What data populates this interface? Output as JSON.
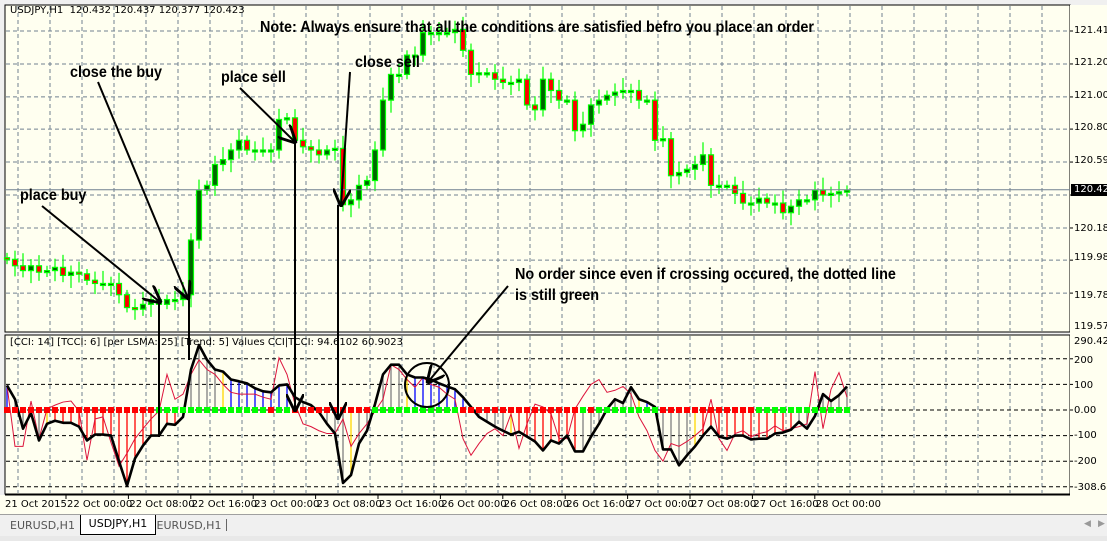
{
  "header": {
    "symbol_info": "USDJPY,H1  120.432 120.437 120.377 120.423"
  },
  "indicator": {
    "info": "[CCI: 14] [TCCI: 6] [per LSMA: 25] [Trend: 5] Values CCI|TCCI: 94.6102 60.9023"
  },
  "price_axis": {
    "ticks": [
      "121.410",
      "121.205",
      "121.000",
      "120.800",
      "120.595",
      "120.185",
      "119.985",
      "119.780",
      "119.575"
    ],
    "current_price": "120.423"
  },
  "indicator_axis": {
    "ticks": [
      "290.421",
      "200",
      "100",
      "0.00",
      "-100",
      "-200",
      "-308.617"
    ]
  },
  "time_axis": {
    "labels": [
      "21 Oct 2015",
      "22 Oct 00:00",
      "22 Oct 08:00",
      "22 Oct 16:00",
      "23 Oct 00:00",
      "23 Oct 08:00",
      "23 Oct 16:00",
      "26 Oct 00:00",
      "26 Oct 08:00",
      "26 Oct 16:00",
      "27 Oct 00:00",
      "27 Oct 08:00",
      "27 Oct 16:00",
      "28 Oct 00:00"
    ]
  },
  "annotations": {
    "note": "Note: Always ensure that all the conditions are satisfied befro you place an order",
    "close_buy": "close the buy",
    "place_sell": "place sell",
    "close_sell": "close sell",
    "place_buy": "place buy",
    "no_order_line1": "No order since even if crossing occured, the dotted line",
    "no_order_line2": "is still green"
  },
  "tabs": [
    {
      "label": "EURUSD,H1",
      "active": false
    },
    {
      "label": "USDJPY,H1",
      "active": true
    },
    {
      "label": "EURUSD,H1",
      "active": false
    }
  ],
  "colors": {
    "chart_bg": "#fffff0",
    "bull_body": "#006400",
    "bear_body": "#ff0000",
    "candle_outline": "#00ff00",
    "cci_line": "#000000",
    "tcci_line": "#dc143c",
    "hist_red": "#ff0000",
    "hist_gray": "#808080",
    "hist_blue": "#0000ff",
    "hist_yellow": "#ffd700",
    "dot_red": "#ff0000",
    "dot_green": "#00ff00"
  },
  "chart_data": {
    "type": "candlestick",
    "symbol": "USDJPY",
    "timeframe": "H1",
    "ylim": [
      119.575,
      121.41
    ],
    "closes": [
      119.99,
      119.95,
      119.92,
      119.95,
      119.91,
      119.92,
      119.94,
      119.89,
      119.91,
      119.9,
      119.86,
      119.84,
      119.84,
      119.84,
      119.77,
      119.69,
      119.68,
      119.71,
      119.74,
      119.71,
      119.74,
      119.74,
      119.77,
      120.11,
      120.42,
      120.45,
      120.58,
      120.61,
      120.67,
      120.73,
      120.67,
      120.67,
      120.67,
      120.67,
      120.86,
      120.87,
      120.73,
      120.69,
      120.67,
      120.64,
      120.67,
      120.68,
      120.33,
      120.36,
      120.45,
      120.48,
      120.67,
      120.98,
      121.14,
      121.14,
      121.26,
      121.26,
      121.4,
      121.4,
      121.4,
      121.4,
      121.42,
      121.29,
      121.14,
      121.15,
      121.15,
      121.11,
      121.09,
      121.09,
      121.11,
      120.95,
      120.92,
      121.11,
      121.04,
      120.98,
      120.98,
      120.79,
      120.83,
      120.95,
      120.98,
      121.01,
      121.03,
      121.04,
      121.04,
      120.98,
      120.98,
      120.73,
      120.74,
      120.51,
      120.53,
      120.55,
      120.58,
      120.64,
      120.45,
      120.45,
      120.45,
      120.4,
      120.34,
      120.34,
      120.37,
      120.34,
      120.34,
      120.28,
      120.32,
      120.36,
      120.36,
      120.42,
      120.39,
      120.4,
      120.41,
      120.42
    ],
    "indicator": {
      "ylim": [
        -308.617,
        290.421
      ],
      "cci": [
        96,
        42,
        -73,
        -12,
        -119,
        -54,
        -42,
        -50,
        -50,
        -65,
        -119,
        -96,
        -96,
        -100,
        -200,
        -296,
        -189,
        -139,
        -100,
        -100,
        -54,
        -58,
        -27,
        158,
        254,
        196,
        158,
        150,
        119,
        112,
        104,
        85,
        73,
        69,
        96,
        100,
        50,
        31,
        19,
        -8,
        -54,
        -92,
        -285,
        -254,
        -131,
        -81,
        23,
        139,
        177,
        177,
        139,
        127,
        127,
        119,
        104,
        92,
        81,
        50,
        12,
        -27,
        -46,
        -65,
        -81,
        -96,
        -85,
        -104,
        -123,
        -158,
        -119,
        -131,
        -100,
        -162,
        -162,
        -104,
        -54,
        4,
        42,
        27,
        89,
        42,
        31,
        12,
        -154,
        -154,
        -216,
        -177,
        -142,
        -100,
        -65,
        -104,
        -112,
        -100,
        -100,
        -115,
        -112,
        -112,
        -92,
        -88,
        -77,
        -46,
        -73,
        -23,
        62,
        35,
        58,
        92
      ],
      "tcci": [
        96,
        -142,
        -142,
        35,
        -112,
        4,
        19,
        31,
        35,
        -4,
        -196,
        -35,
        -27,
        -127,
        -219,
        -169,
        -112,
        -73,
        -35,
        -4,
        139,
        42,
        62,
        139,
        196,
        158,
        139,
        100,
        69,
        62,
        62,
        62,
        50,
        42,
        204,
        139,
        23,
        -54,
        -65,
        -81,
        -92,
        -92,
        -35,
        -142,
        -92,
        -54,
        -4,
        42,
        177,
        158,
        119,
        89,
        127,
        100,
        89,
        62,
        42,
        -112,
        -177,
        -131,
        -92,
        -73,
        -100,
        -15,
        -150,
        -54,
        23,
        12,
        -15,
        -112,
        -112,
        4,
        54,
        100,
        119,
        69,
        77,
        92,
        62,
        -27,
        -81,
        -158,
        -200,
        -131,
        -142,
        -123,
        -100,
        -73,
        42,
        -112,
        -158,
        -92,
        -81,
        -104,
        -92,
        -85,
        -62,
        -81,
        -73,
        -65,
        -54,
        150,
        -73,
        81,
        146,
        50
      ],
      "histogram_colors": "bggggyrrrrrrrrrrrrrrrrgggggybbbbbbbbgggggggyggggggybbbbbbbbggggyrrrrrrrrgggggggybgggggyrrrrrrrrrrrrggggggg",
      "trend_dots": "RRRRRRRRRRRRRRRRRRRGGGGGGGGGGGGGGRGGRRRRRRRRRRGGGGGGGGGGGRRRRRRRRRRRRRRRGRGGGGGGGGRRRRRRRRRRRRGGGGGGGGGGGG"
    }
  }
}
